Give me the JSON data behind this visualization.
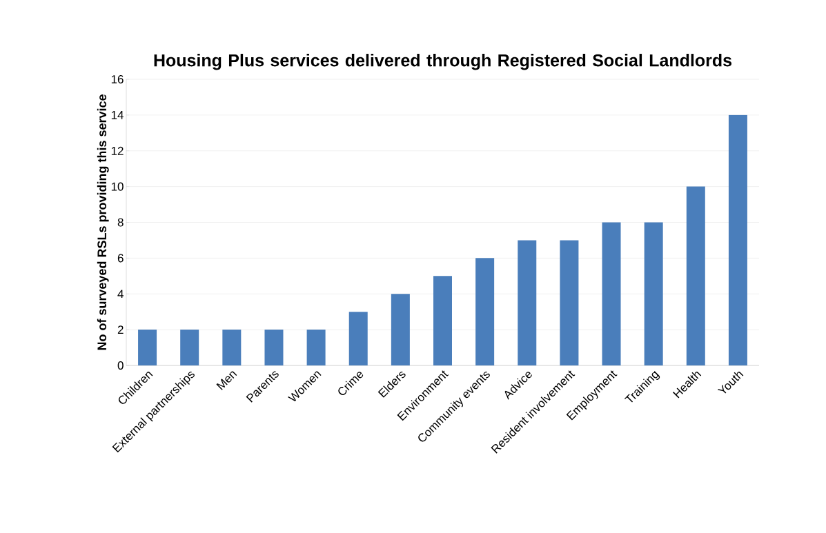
{
  "chart_data": {
    "type": "bar",
    "title": "Housing Plus services delivered through Registered Social Landlords",
    "ylabel": "No of surveyed RSLs providing this service",
    "categories": [
      "Children",
      "External partnerships",
      "Men",
      "Parents",
      "Women",
      "Crime",
      "Elders",
      "Environment",
      "Community events",
      "Advice",
      "Resident involvement",
      "Employment",
      "Training",
      "Health",
      "Youth"
    ],
    "values": [
      2,
      2,
      2,
      2,
      2,
      3,
      4,
      5,
      6,
      7,
      7,
      8,
      8,
      10,
      14
    ],
    "color": "#4a7ebb",
    "ylim": [
      0,
      16
    ],
    "yticks": [
      0,
      2,
      4,
      6,
      8,
      10,
      12,
      14,
      16
    ],
    "grid": "y"
  }
}
